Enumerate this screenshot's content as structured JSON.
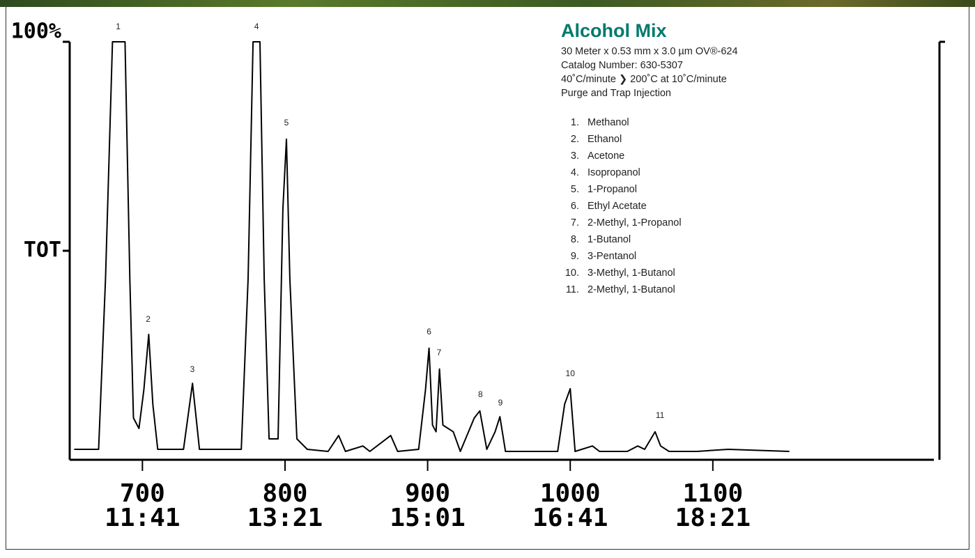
{
  "chart_data": {
    "type": "line",
    "ylim": [
      0,
      100
    ],
    "yticks": [
      {
        "value": 100,
        "label": "100%"
      },
      {
        "value": 50,
        "label": "TOT"
      }
    ],
    "xlim": [
      649,
      1255
    ],
    "xticks": [
      700,
      800,
      900,
      1000,
      1100
    ],
    "xtick_times": [
      "11:41",
      "13:21",
      "15:01",
      "16:41",
      "18:21"
    ],
    "color": "#000000",
    "x": [
      652.2,
      669.3,
      674.1,
      679.0,
      687.8,
      691.2,
      693.7,
      697.6,
      701.0,
      704.4,
      707.3,
      710.7,
      728.8,
      735.1,
      740.0,
      747.3,
      769.3,
      774.1,
      777.6,
      782.4,
      785.4,
      788.8,
      795.1,
      798.5,
      801.0,
      803.4,
      808.3,
      815.6,
      830.2,
      837.6,
      842.4,
      854.6,
      859.5,
      874.1,
      879.0,
      893.7,
      898.5,
      901.0,
      903.4,
      905.9,
      908.3,
      910.7,
      918.0,
      922.9,
      932.7,
      936.6,
      941.5,
      947.3,
      950.7,
      954.6,
      991.2,
      996.1,
      1000.0,
      1003.4,
      1015.6,
      1020.5,
      1040.0,
      1047.3,
      1052.2,
      1059.5,
      1063.4,
      1069.3,
      1088.8,
      1110.7,
      1153.7
    ],
    "values": [
      2.5,
      2.5,
      43.3,
      100,
      100,
      43.3,
      10,
      7.5,
      16.7,
      30,
      13.3,
      2.5,
      2.5,
      18.3,
      2.5,
      2.5,
      2.5,
      43.3,
      100,
      100,
      43.3,
      5,
      5,
      60,
      76.7,
      43.3,
      5,
      2.5,
      2,
      5.8,
      2,
      3.3,
      2,
      5.8,
      2,
      2.5,
      16.7,
      26.7,
      8.3,
      6.7,
      21.7,
      8.3,
      6.7,
      2,
      10,
      11.7,
      2.5,
      6.7,
      10.3,
      2,
      2,
      13.3,
      17,
      2,
      3.3,
      2,
      2,
      3.3,
      2.5,
      6.7,
      3.3,
      2,
      2,
      2.5,
      2
    ],
    "peaks": [
      {
        "label": "1",
        "x": 683,
        "y": 100
      },
      {
        "label": "2",
        "x": 704,
        "y": 30
      },
      {
        "label": "3",
        "x": 735,
        "y": 18
      },
      {
        "label": "4",
        "x": 780,
        "y": 100
      },
      {
        "label": "5",
        "x": 801,
        "y": 77
      },
      {
        "label": "6",
        "x": 901,
        "y": 27
      },
      {
        "label": "7",
        "x": 908,
        "y": 22
      },
      {
        "label": "8",
        "x": 937,
        "y": 12
      },
      {
        "label": "9",
        "x": 951,
        "y": 10
      },
      {
        "label": "10",
        "x": 1000,
        "y": 17
      },
      {
        "label": "11",
        "x": 1063,
        "y": 7
      }
    ],
    "title": "Alcohol Mix",
    "details": [
      "30 Meter x 0.53 mm x 3.0 µm OV®-624",
      "Catalog Number: 630-5307",
      "40˚C/minute ❯ 200˚C at 10˚C/minute",
      "Purge and Trap Injection"
    ],
    "compounds": [
      "Methanol",
      "Ethanol",
      "Acetone",
      "Isopropanol",
      "1-Propanol",
      "Ethyl Acetate",
      "2-Methyl, 1-Propanol",
      "1-Butanol",
      "3-Pentanol",
      "3-Methyl, 1-Butanol",
      "2-Methyl, 1-Butanol"
    ]
  }
}
